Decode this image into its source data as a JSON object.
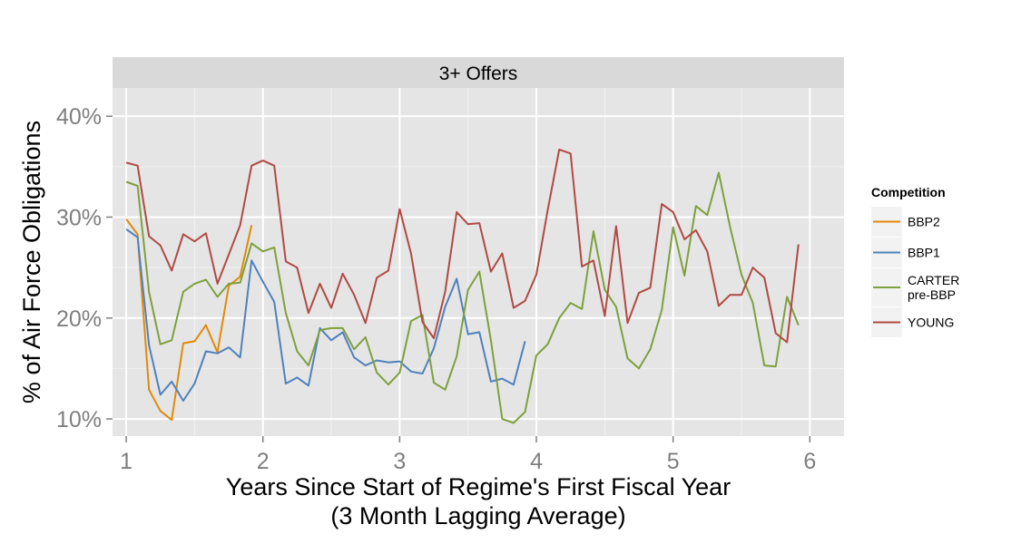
{
  "chart_data": {
    "type": "line",
    "facet_label": "3+ Offers",
    "xlabel_line1": "Years Since Start of Regime's First Fiscal Year",
    "xlabel_line2": "(3 Month Lagging Average)",
    "ylabel": "% of Air Force Obligations",
    "xlim": [
      0.9,
      6.25
    ],
    "ylim": [
      0.083,
      0.428
    ],
    "x_ticks": [
      1,
      2,
      3,
      4,
      5,
      6
    ],
    "x_tick_labels": [
      "1",
      "2",
      "3",
      "4",
      "5",
      "6"
    ],
    "y_ticks": [
      0.1,
      0.2,
      0.3,
      0.4
    ],
    "y_tick_labels": [
      "10%",
      "20%",
      "30%",
      "40%"
    ],
    "grid": true,
    "legend_position": "right",
    "legend_title": "Competition",
    "legend_items": [
      {
        "label_lines": [
          "BBP2"
        ],
        "color": "#e08a0b"
      },
      {
        "label_lines": [
          "BBP1"
        ],
        "color": "#4f81bd"
      },
      {
        "label_lines": [
          "CARTER",
          "pre-BBP"
        ],
        "color": "#7ea03e"
      },
      {
        "label_lines": [
          "YOUNG"
        ],
        "color": "#b04a44"
      }
    ],
    "series": [
      {
        "name": "BBP2",
        "color": "#e08a0b",
        "x": [
          1.0,
          1.083,
          1.167,
          1.25,
          1.333,
          1.417,
          1.5,
          1.583,
          1.667,
          1.75,
          1.833,
          1.917
        ],
        "y": [
          0.298,
          0.283,
          0.129,
          0.108,
          0.099,
          0.175,
          0.177,
          0.193,
          0.166,
          0.232,
          0.241,
          0.292
        ]
      },
      {
        "name": "BBP1",
        "color": "#4f81bd",
        "x": [
          1.0,
          1.083,
          1.167,
          1.25,
          1.333,
          1.417,
          1.5,
          1.583,
          1.667,
          1.75,
          1.833,
          1.917,
          2.0,
          2.083,
          2.167,
          2.25,
          2.333,
          2.417,
          2.5,
          2.583,
          2.667,
          2.75,
          2.833,
          2.917,
          3.0,
          3.083,
          3.167,
          3.25,
          3.333,
          3.417,
          3.5,
          3.583,
          3.667,
          3.75,
          3.833,
          3.917
        ],
        "y": [
          0.288,
          0.28,
          0.173,
          0.124,
          0.137,
          0.118,
          0.135,
          0.167,
          0.165,
          0.171,
          0.161,
          0.257,
          0.236,
          0.216,
          0.135,
          0.141,
          0.133,
          0.19,
          0.178,
          0.186,
          0.161,
          0.153,
          0.158,
          0.156,
          0.157,
          0.147,
          0.145,
          0.17,
          0.211,
          0.239,
          0.184,
          0.186,
          0.137,
          0.14,
          0.134,
          0.177
        ]
      },
      {
        "name": "CARTER pre-BBP",
        "color": "#7ea03e",
        "x": [
          1.0,
          1.083,
          1.167,
          1.25,
          1.333,
          1.417,
          1.5,
          1.583,
          1.667,
          1.75,
          1.833,
          1.917,
          2.0,
          2.083,
          2.167,
          2.25,
          2.333,
          2.417,
          2.5,
          2.583,
          2.667,
          2.75,
          2.833,
          2.917,
          3.0,
          3.083,
          3.167,
          3.25,
          3.333,
          3.417,
          3.5,
          3.583,
          3.667,
          3.75,
          3.833,
          3.917,
          4.0,
          4.083,
          4.167,
          4.25,
          4.333,
          4.417,
          4.5,
          4.583,
          4.667,
          4.75,
          4.833,
          4.917,
          5.0,
          5.083,
          5.167,
          5.25,
          5.333,
          5.417,
          5.5,
          5.583,
          5.667,
          5.75,
          5.833,
          5.917
        ],
        "y": [
          0.335,
          0.331,
          0.226,
          0.174,
          0.178,
          0.226,
          0.234,
          0.238,
          0.221,
          0.234,
          0.235,
          0.274,
          0.266,
          0.27,
          0.205,
          0.167,
          0.153,
          0.188,
          0.19,
          0.19,
          0.169,
          0.181,
          0.146,
          0.134,
          0.146,
          0.197,
          0.203,
          0.136,
          0.129,
          0.162,
          0.228,
          0.246,
          0.178,
          0.1,
          0.096,
          0.107,
          0.163,
          0.174,
          0.2,
          0.215,
          0.209,
          0.286,
          0.228,
          0.211,
          0.16,
          0.15,
          0.169,
          0.208,
          0.29,
          0.242,
          0.311,
          0.302,
          0.344,
          0.29,
          0.243,
          0.215,
          0.153,
          0.152,
          0.221,
          0.193
        ]
      },
      {
        "name": "YOUNG",
        "color": "#b04a44",
        "x": [
          1.0,
          1.083,
          1.167,
          1.25,
          1.333,
          1.417,
          1.5,
          1.583,
          1.667,
          1.75,
          1.833,
          1.917,
          2.0,
          2.083,
          2.167,
          2.25,
          2.333,
          2.417,
          2.5,
          2.583,
          2.667,
          2.75,
          2.833,
          2.917,
          3.0,
          3.083,
          3.167,
          3.25,
          3.333,
          3.417,
          3.5,
          3.583,
          3.667,
          3.75,
          3.833,
          3.917,
          4.0,
          4.083,
          4.167,
          4.25,
          4.333,
          4.417,
          4.5,
          4.583,
          4.667,
          4.75,
          4.833,
          4.917,
          5.0,
          5.083,
          5.167,
          5.25,
          5.333,
          5.417,
          5.5,
          5.583,
          5.667,
          5.75,
          5.833,
          5.917
        ],
        "y": [
          0.354,
          0.351,
          0.281,
          0.272,
          0.247,
          0.283,
          0.276,
          0.284,
          0.234,
          0.263,
          0.292,
          0.351,
          0.356,
          0.351,
          0.256,
          0.25,
          0.205,
          0.234,
          0.21,
          0.244,
          0.223,
          0.195,
          0.24,
          0.247,
          0.308,
          0.264,
          0.196,
          0.18,
          0.226,
          0.305,
          0.293,
          0.294,
          0.246,
          0.264,
          0.21,
          0.217,
          0.243,
          0.307,
          0.367,
          0.363,
          0.251,
          0.257,
          0.202,
          0.291,
          0.195,
          0.225,
          0.23,
          0.313,
          0.305,
          0.278,
          0.287,
          0.266,
          0.212,
          0.223,
          0.223,
          0.25,
          0.24,
          0.185,
          0.176,
          0.273
        ]
      }
    ]
  }
}
